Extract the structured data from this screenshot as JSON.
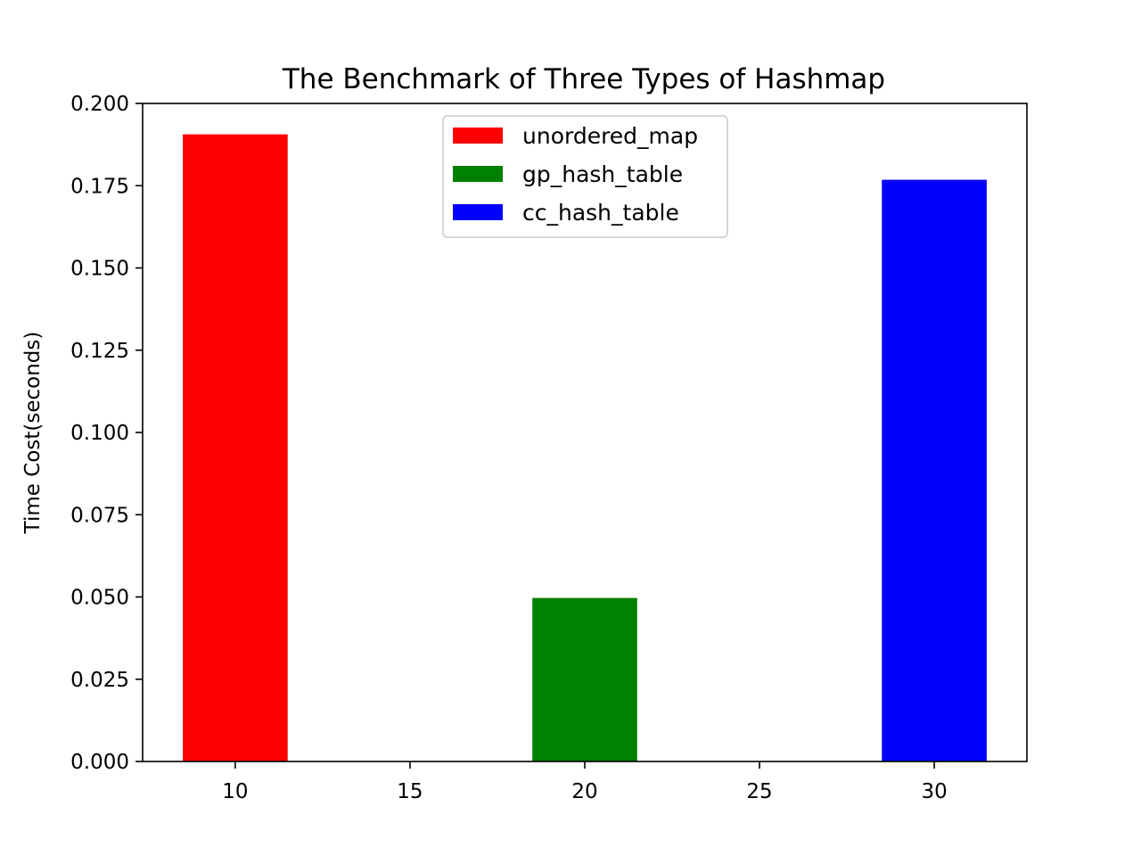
{
  "chart_data": {
    "type": "bar",
    "title": "The Benchmark of Three Types of Hashmap",
    "xlabel": "",
    "ylabel": "Time Cost(seconds)",
    "xlim": [
      7.35,
      32.65
    ],
    "ylim": [
      0,
      0.2
    ],
    "xticks": [
      10,
      15,
      20,
      25,
      30
    ],
    "yticks": [
      0.0,
      0.025,
      0.05,
      0.075,
      0.1,
      0.125,
      0.15,
      0.175,
      0.2
    ],
    "ytick_labels": [
      "0.000",
      "0.025",
      "0.050",
      "0.075",
      "0.100",
      "0.125",
      "0.150",
      "0.175",
      "0.200"
    ],
    "bar_width": 3,
    "series": [
      {
        "name": "unordered_map",
        "x": 10,
        "value": 0.1906,
        "color": "#ff0000"
      },
      {
        "name": "gp_hash_table",
        "x": 20,
        "value": 0.0497,
        "color": "#008000"
      },
      {
        "name": "cc_hash_table",
        "x": 30,
        "value": 0.1768,
        "color": "#0000ff"
      }
    ],
    "legend": {
      "placement": "upper-center"
    },
    "grid": false
  }
}
